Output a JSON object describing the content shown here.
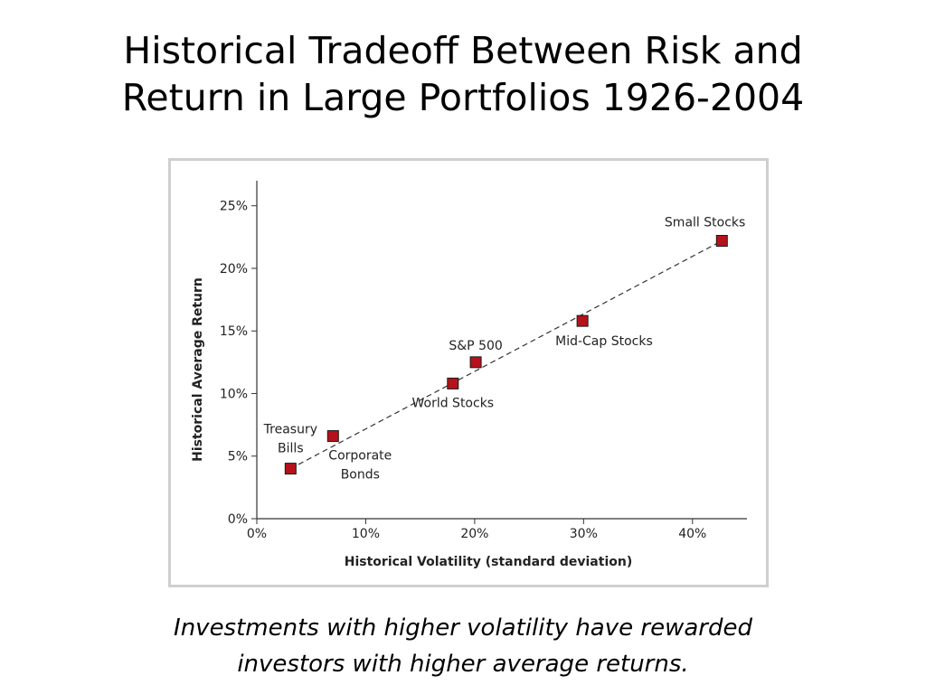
{
  "slide": {
    "title_line1": "Historical Tradeoff Between Risk and",
    "title_line2": "Return in Large Portfolios 1926-2004",
    "caption_line1": "Investments with higher volatility have rewarded",
    "caption_line2": "investors with higher average returns."
  },
  "chart_data": {
    "type": "scatter",
    "title": "",
    "xlabel": "Historical Volatility (standard deviation)",
    "ylabel": "Historical Average Return",
    "xlim": [
      0,
      45
    ],
    "ylim": [
      0,
      27
    ],
    "xticks": [
      0,
      10,
      20,
      30,
      40
    ],
    "xtick_labels": [
      "0%",
      "10%",
      "20%",
      "30%",
      "40%"
    ],
    "yticks": [
      0,
      5,
      10,
      15,
      20,
      25
    ],
    "ytick_labels": [
      "0%",
      "5%",
      "10%",
      "15%",
      "20%",
      "25%"
    ],
    "grid": false,
    "marker_color": "#b5121b",
    "points": [
      {
        "label": [
          "Treasury",
          "Bills"
        ],
        "label_position": "above-left",
        "x": 3.1,
        "y": 4.0
      },
      {
        "label": [
          "Corporate",
          "Bonds"
        ],
        "label_position": "below-right",
        "x": 7.0,
        "y": 6.6
      },
      {
        "label": [
          "World Stocks"
        ],
        "label_position": "below",
        "x": 18.0,
        "y": 10.8
      },
      {
        "label": [
          "S&P 500"
        ],
        "label_position": "above",
        "x": 20.1,
        "y": 12.5
      },
      {
        "label": [
          "Mid-Cap Stocks"
        ],
        "label_position": "below-right",
        "x": 29.9,
        "y": 15.8
      },
      {
        "label": [
          "Small Stocks"
        ],
        "label_position": "above-left",
        "x": 42.7,
        "y": 22.2
      }
    ],
    "trend_line": {
      "style": "dashed",
      "from": {
        "x": 3.1,
        "y": 4.0
      },
      "to": {
        "x": 42.7,
        "y": 22.2
      }
    }
  }
}
